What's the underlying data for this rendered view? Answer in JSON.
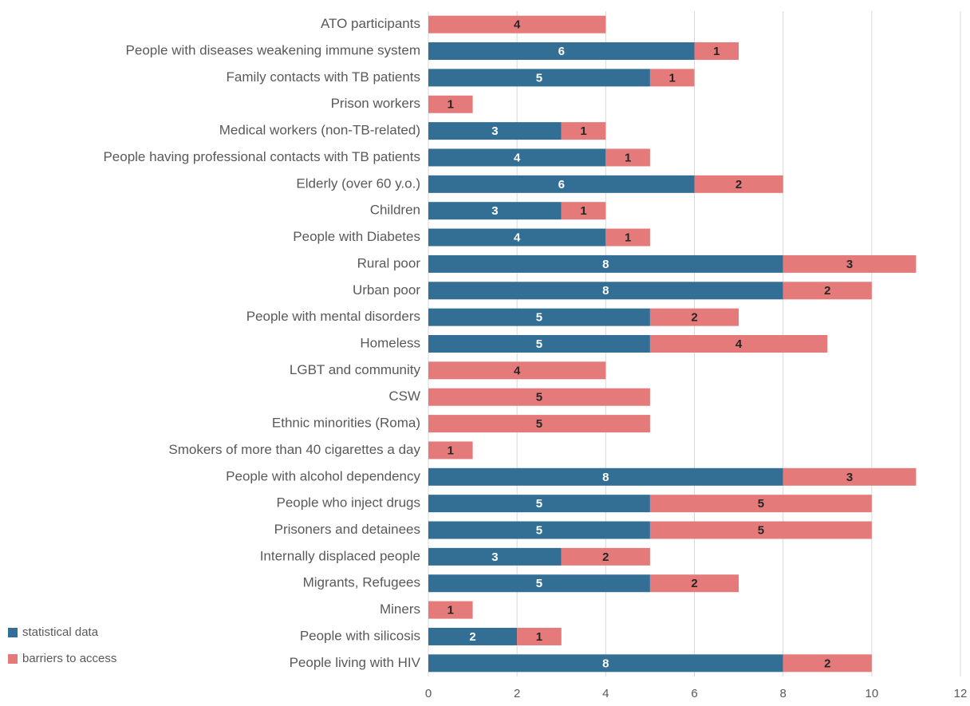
{
  "chart_data": {
    "type": "stacked-barh",
    "categories": [
      "ATO participants",
      "People with diseases weakening immune system",
      "Family contacts with TB patients",
      "Prison workers",
      "Medical workers (non-TB-related)",
      "People having professional contacts with TB patients",
      "Elderly (over 60 y.o.)",
      "Children",
      "People with Diabetes",
      "Rural poor",
      "Urban poor",
      "People with mental disorders",
      "Homeless",
      "LGBT and community",
      "CSW",
      "Ethnic minorities (Roma)",
      "Smokers of more than 40 cigarettes a day",
      "People with alcohol dependency",
      "People who inject drugs",
      "Prisoners and detainees",
      "Internally displaced people",
      "Migrants, Refugees",
      "Miners",
      "People with silicosis",
      "People living with HIV"
    ],
    "series": [
      {
        "name": "statistical data",
        "color": "#336f95",
        "values": [
          null,
          6,
          5,
          null,
          3,
          4,
          6,
          3,
          4,
          8,
          8,
          5,
          5,
          null,
          null,
          null,
          null,
          8,
          5,
          5,
          3,
          5,
          null,
          2,
          8
        ]
      },
      {
        "name": "barriers to access",
        "color": "#e57a7a",
        "values": [
          4,
          1,
          1,
          1,
          1,
          1,
          2,
          1,
          1,
          3,
          2,
          2,
          4,
          4,
          5,
          5,
          1,
          3,
          5,
          5,
          2,
          2,
          1,
          1,
          2
        ]
      }
    ],
    "xlim": [
      0,
      12
    ],
    "xticks": [
      0,
      2,
      4,
      6,
      8,
      10,
      12
    ],
    "grid": true,
    "legend": "bottom-left"
  }
}
